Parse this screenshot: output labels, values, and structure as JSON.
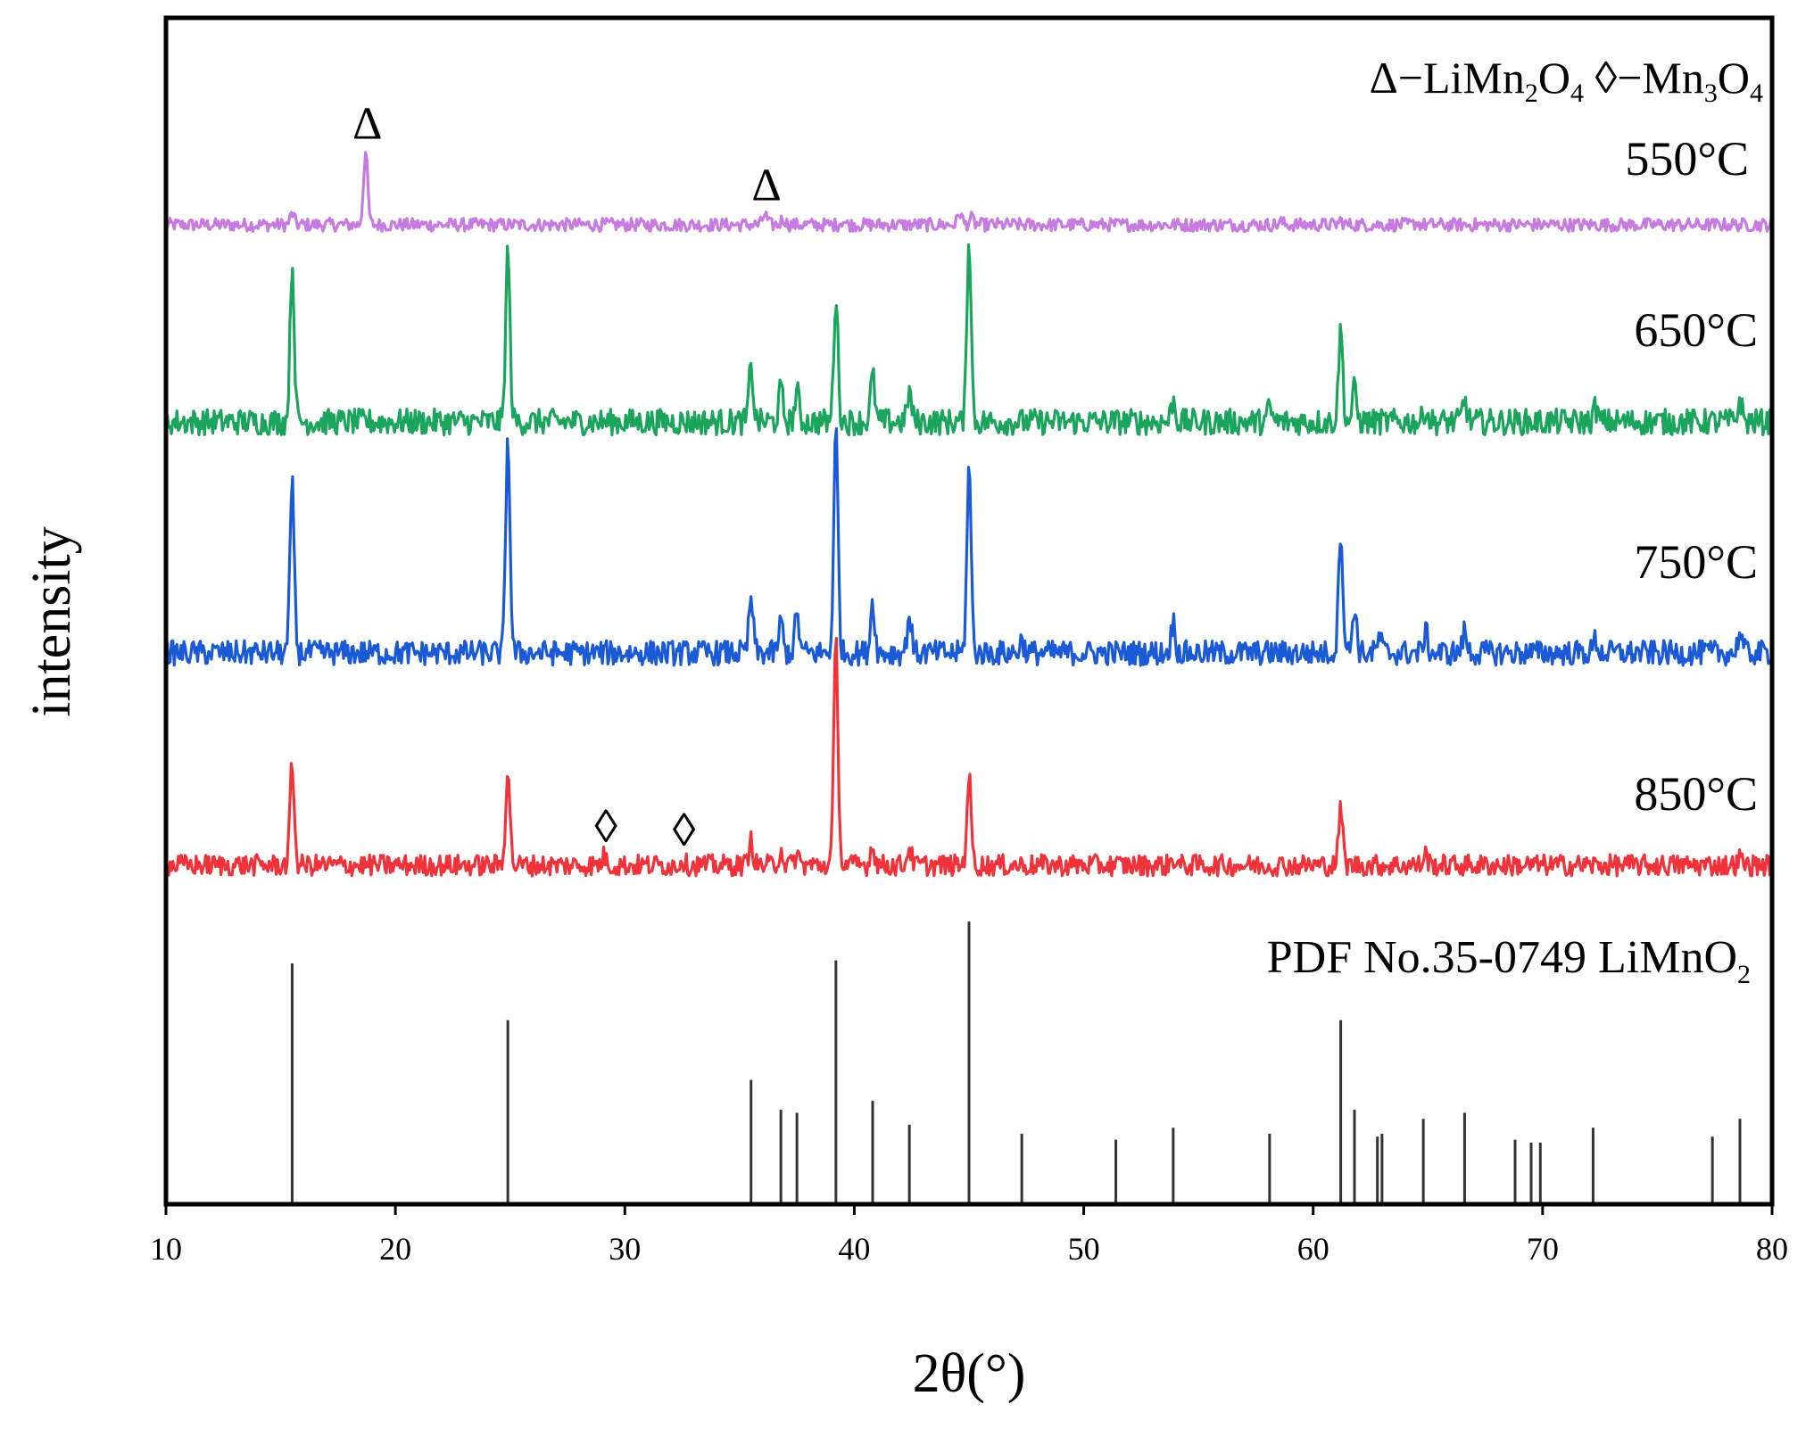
{
  "chart_data": {
    "type": "line",
    "title": "",
    "xlabel": "2θ(°)",
    "ylabel": "intensity",
    "xlim": [
      10,
      80
    ],
    "xticks": [
      10,
      20,
      30,
      40,
      50,
      60,
      70,
      80
    ],
    "yticks_shown": false,
    "legend": {
      "position": "top-right",
      "triangle": {
        "symbol": "Δ",
        "sep": "−",
        "name": "LiMn",
        "sub1": "2",
        "mid": "O",
        "sub2": "4"
      },
      "diamond": {
        "symbol": "◊",
        "sep": "−",
        "name": "Mn",
        "sub1": "3",
        "mid": "O",
        "sub2": "4"
      }
    },
    "series": [
      {
        "name": "550°C",
        "color": "#c77be0",
        "baseline": 0.8,
        "peaks": [
          {
            "x": 15.5,
            "h": 0.8
          },
          {
            "x": 18.7,
            "h": 5.2
          },
          {
            "x": 36.1,
            "h": 0.75
          },
          {
            "x": 36.9,
            "h": 0.45
          },
          {
            "x": 39.5,
            "h": 0.3
          },
          {
            "x": 44.6,
            "h": 0.9
          },
          {
            "x": 45.1,
            "h": 0.45
          },
          {
            "x": 58.6,
            "h": 0.2
          },
          {
            "x": 61.2,
            "h": 0.3
          },
          {
            "x": 64.5,
            "h": 0.15
          }
        ]
      },
      {
        "name": "650°C",
        "color": "#1aa45c",
        "baseline": 0.8,
        "peaks": [
          {
            "x": 15.5,
            "h": 5.8
          },
          {
            "x": 24.9,
            "h": 6.3
          },
          {
            "x": 35.5,
            "h": 2.0
          },
          {
            "x": 36.8,
            "h": 1.2
          },
          {
            "x": 37.5,
            "h": 1.1
          },
          {
            "x": 39.2,
            "h": 4.6
          },
          {
            "x": 40.8,
            "h": 1.7
          },
          {
            "x": 42.4,
            "h": 1.1
          },
          {
            "x": 45.0,
            "h": 6.8
          },
          {
            "x": 53.9,
            "h": 0.8
          },
          {
            "x": 58.1,
            "h": 0.5
          },
          {
            "x": 61.2,
            "h": 3.4
          },
          {
            "x": 61.8,
            "h": 1.2
          },
          {
            "x": 64.9,
            "h": 0.5
          },
          {
            "x": 66.6,
            "h": 0.8
          },
          {
            "x": 72.3,
            "h": 0.5
          },
          {
            "x": 78.6,
            "h": 0.8
          }
        ]
      },
      {
        "name": "750°C",
        "color": "#1a5ad6",
        "baseline": 0.8,
        "peaks": [
          {
            "x": 15.5,
            "h": 6.5
          },
          {
            "x": 24.9,
            "h": 8.4
          },
          {
            "x": 35.5,
            "h": 2.1
          },
          {
            "x": 36.8,
            "h": 1.2
          },
          {
            "x": 37.5,
            "h": 1.5
          },
          {
            "x": 39.2,
            "h": 8.6
          },
          {
            "x": 40.8,
            "h": 2.0
          },
          {
            "x": 42.4,
            "h": 1.5
          },
          {
            "x": 45.0,
            "h": 7.2
          },
          {
            "x": 47.3,
            "h": 0.5
          },
          {
            "x": 53.9,
            "h": 1.2
          },
          {
            "x": 61.2,
            "h": 4.8
          },
          {
            "x": 61.8,
            "h": 1.8
          },
          {
            "x": 62.9,
            "h": 0.6
          },
          {
            "x": 64.9,
            "h": 0.8
          },
          {
            "x": 66.6,
            "h": 0.8
          },
          {
            "x": 72.3,
            "h": 0.5
          },
          {
            "x": 78.6,
            "h": 0.8
          }
        ]
      },
      {
        "name": "850°C",
        "color": "#f0333a",
        "baseline": 0.8,
        "peaks": [
          {
            "x": 15.5,
            "h": 4.5
          },
          {
            "x": 24.9,
            "h": 4.4
          },
          {
            "x": 29.1,
            "h": 0.4
          },
          {
            "x": 32.5,
            "h": 0.25
          },
          {
            "x": 35.5,
            "h": 1.1
          },
          {
            "x": 36.8,
            "h": 0.7
          },
          {
            "x": 37.5,
            "h": 0.5
          },
          {
            "x": 39.2,
            "h": 10.0
          },
          {
            "x": 40.8,
            "h": 0.9
          },
          {
            "x": 42.4,
            "h": 0.8
          },
          {
            "x": 45.0,
            "h": 4.0
          },
          {
            "x": 53.9,
            "h": 0.3
          },
          {
            "x": 61.2,
            "h": 2.5
          },
          {
            "x": 64.9,
            "h": 0.5
          },
          {
            "x": 78.6,
            "h": 0.3
          }
        ]
      }
    ],
    "reference": {
      "name": "PDF No.35-0749 LiMnO",
      "name_sub": "2",
      "color": "#333333",
      "lines": [
        {
          "x": 15.5,
          "h": 80
        },
        {
          "x": 24.9,
          "h": 61
        },
        {
          "x": 35.5,
          "h": 41
        },
        {
          "x": 36.8,
          "h": 31
        },
        {
          "x": 37.5,
          "h": 30
        },
        {
          "x": 39.2,
          "h": 81
        },
        {
          "x": 40.8,
          "h": 34
        },
        {
          "x": 42.4,
          "h": 26
        },
        {
          "x": 45.0,
          "h": 94
        },
        {
          "x": 47.3,
          "h": 23
        },
        {
          "x": 51.4,
          "h": 21
        },
        {
          "x": 53.9,
          "h": 25
        },
        {
          "x": 58.1,
          "h": 23
        },
        {
          "x": 61.2,
          "h": 61
        },
        {
          "x": 61.8,
          "h": 31
        },
        {
          "x": 62.8,
          "h": 22
        },
        {
          "x": 63.0,
          "h": 23
        },
        {
          "x": 64.8,
          "h": 28
        },
        {
          "x": 66.6,
          "h": 30
        },
        {
          "x": 68.8,
          "h": 21
        },
        {
          "x": 69.5,
          "h": 20
        },
        {
          "x": 69.9,
          "h": 20
        },
        {
          "x": 72.2,
          "h": 25
        },
        {
          "x": 77.4,
          "h": 22
        },
        {
          "x": 78.6,
          "h": 28
        }
      ]
    },
    "annotations": [
      {
        "symbol": "Δ",
        "x": 18.7,
        "series": "550°C"
      },
      {
        "symbol": "Δ",
        "x": 36.1,
        "series": "550°C"
      },
      {
        "symbol": "◊",
        "x": 29.1,
        "series": "850°C"
      },
      {
        "symbol": "◊",
        "x": 32.5,
        "series": "850°C"
      }
    ]
  }
}
